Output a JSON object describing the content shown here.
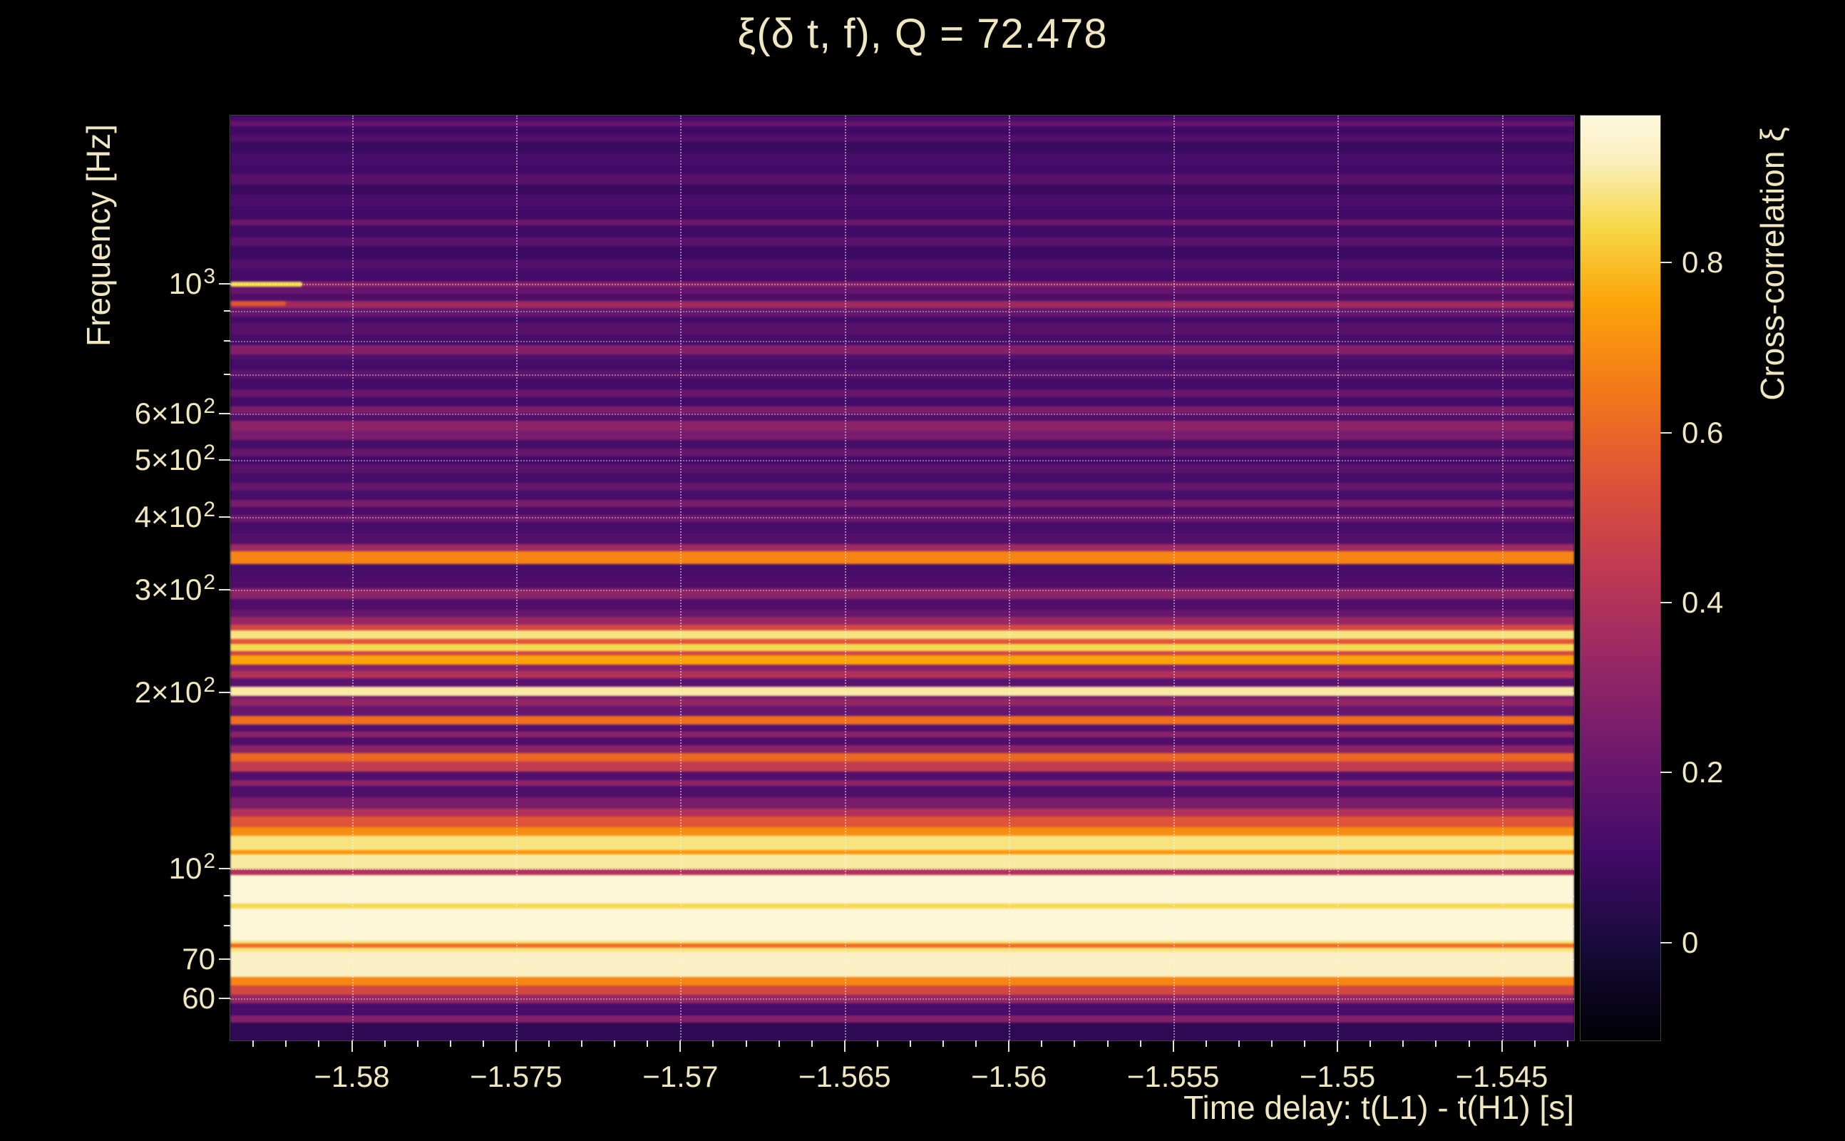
{
  "colors": {
    "background": "#000000",
    "text": "#f0e6c2",
    "tick": "#eae3cd",
    "grid": "rgba(244,244,244,0.45)"
  },
  "chart_data": {
    "type": "heatmap",
    "title": "ξ(δ t, f), Q = 72.478",
    "xlabel": "Time delay: t(L1) - t(H1) [s]",
    "ylabel": "Frequency [Hz]",
    "colorbar_label": "Cross-correlation ξ",
    "x_range": [
      -1.5837,
      -1.5428
    ],
    "x_minor_step": 0.001,
    "x_ticks": [
      {
        "value": -1.58,
        "label": "−1.58"
      },
      {
        "value": -1.575,
        "label": "−1.575"
      },
      {
        "value": -1.57,
        "label": "−1.57"
      },
      {
        "value": -1.565,
        "label": "−1.565"
      },
      {
        "value": -1.56,
        "label": "−1.56"
      },
      {
        "value": -1.555,
        "label": "−1.555"
      },
      {
        "value": -1.55,
        "label": "−1.55"
      },
      {
        "value": -1.545,
        "label": "−1.545"
      }
    ],
    "y_scale": "log",
    "y_range": [
      50.9,
      1940
    ],
    "y_major_ticks": [
      {
        "value": 1000,
        "base": "10",
        "exp": "3"
      },
      {
        "value": 600,
        "base": "6×10",
        "exp": "2"
      },
      {
        "value": 500,
        "base": "5×10",
        "exp": "2"
      },
      {
        "value": 400,
        "base": "4×10",
        "exp": "2"
      },
      {
        "value": 300,
        "base": "3×10",
        "exp": "2"
      },
      {
        "value": 200,
        "base": "2×10",
        "exp": "2"
      },
      {
        "value": 100,
        "base": "10",
        "exp": "2"
      },
      {
        "value": 70,
        "base": "70",
        "exp": ""
      },
      {
        "value": 60,
        "base": "60",
        "exp": ""
      }
    ],
    "y_minor_ticks": [
      80,
      90,
      700,
      800,
      900
    ],
    "y_grid": [
      60,
      70,
      80,
      90,
      100,
      200,
      300,
      400,
      500,
      600,
      700,
      800,
      900,
      1000
    ],
    "grid": true,
    "colorbar": {
      "min": -0.115,
      "max": 0.973,
      "ticks": [
        {
          "value": 0,
          "label": "0"
        },
        {
          "value": 0.2,
          "label": "0.2"
        },
        {
          "value": 0.4,
          "label": "0.4"
        },
        {
          "value": 0.6,
          "label": "0.6"
        },
        {
          "value": 0.8,
          "label": "0.8"
        }
      ]
    },
    "colormap_stops": [
      [
        0.0,
        "#000004"
      ],
      [
        0.1,
        "#160b39"
      ],
      [
        0.2,
        "#420a68"
      ],
      [
        0.3,
        "#6a176e"
      ],
      [
        0.4,
        "#932667"
      ],
      [
        0.5,
        "#bc3754"
      ],
      [
        0.6,
        "#dd513a"
      ],
      [
        0.7,
        "#f3771a"
      ],
      [
        0.8,
        "#fca50a"
      ],
      [
        0.88,
        "#f6d848"
      ],
      [
        0.95,
        "#fbeebc"
      ],
      [
        1.0,
        "#fdf8e0"
      ]
    ],
    "bands": [
      [
        50.9,
        54.7,
        0.06
      ],
      [
        54.7,
        56.3,
        0.28
      ],
      [
        56.3,
        59,
        0.12
      ],
      [
        59,
        61,
        0.32
      ],
      [
        61,
        63.3,
        0.5
      ],
      [
        63.3,
        65.5,
        0.68
      ],
      [
        65.5,
        72.3,
        0.93
      ],
      [
        72.3,
        73.5,
        0.88
      ],
      [
        73.5,
        74.8,
        0.62
      ],
      [
        74.8,
        75.5,
        0.88
      ],
      [
        75.5,
        85.8,
        0.96
      ],
      [
        85.8,
        87.4,
        0.85
      ],
      [
        87.4,
        97.7,
        0.96
      ],
      [
        97.7,
        100,
        0.4
      ],
      [
        100,
        106,
        0.9
      ],
      [
        106,
        108,
        0.72
      ],
      [
        108,
        114,
        0.88
      ],
      [
        114,
        118,
        0.7
      ],
      [
        118,
        123,
        0.55
      ],
      [
        123,
        127,
        0.4
      ],
      [
        127,
        133,
        0.25
      ],
      [
        133,
        139,
        0.14
      ],
      [
        139,
        142,
        0.3
      ],
      [
        142,
        147,
        0.15
      ],
      [
        147,
        153,
        0.45
      ],
      [
        153,
        158,
        0.6
      ],
      [
        158,
        163,
        0.3
      ],
      [
        163,
        168,
        0.14
      ],
      [
        168,
        172,
        0.3
      ],
      [
        172,
        177,
        0.15
      ],
      [
        177,
        183,
        0.62
      ],
      [
        183,
        190,
        0.2
      ],
      [
        190,
        196,
        0.32
      ],
      [
        196,
        198,
        0.2
      ],
      [
        198,
        205,
        0.9
      ],
      [
        205,
        212,
        0.17
      ],
      [
        212,
        218,
        0.4
      ],
      [
        218,
        224,
        0.28
      ],
      [
        224,
        232,
        0.75
      ],
      [
        232,
        236,
        0.5
      ],
      [
        236,
        243,
        0.85
      ],
      [
        243,
        248,
        0.55
      ],
      [
        248,
        256,
        0.88
      ],
      [
        256,
        262,
        0.5
      ],
      [
        262,
        270,
        0.33
      ],
      [
        270,
        278,
        0.2
      ],
      [
        278,
        290,
        0.14
      ],
      [
        290,
        302,
        0.3
      ],
      [
        302,
        315,
        0.14
      ],
      [
        315,
        333,
        0.12
      ],
      [
        333,
        350,
        0.68
      ],
      [
        350,
        360,
        0.35
      ],
      [
        360,
        375,
        0.15
      ],
      [
        375,
        392,
        0.12
      ],
      [
        392,
        404,
        0.22
      ],
      [
        404,
        416,
        0.13
      ],
      [
        416,
        428,
        0.25
      ],
      [
        428,
        444,
        0.12
      ],
      [
        444,
        458,
        0.2
      ],
      [
        458,
        476,
        0.12
      ],
      [
        476,
        492,
        0.17
      ],
      [
        492,
        508,
        0.11
      ],
      [
        508,
        524,
        0.2
      ],
      [
        524,
        542,
        0.12
      ],
      [
        542,
        562,
        0.25
      ],
      [
        562,
        584,
        0.3
      ],
      [
        584,
        602,
        0.15
      ],
      [
        602,
        618,
        0.26
      ],
      [
        618,
        642,
        0.11
      ],
      [
        642,
        662,
        0.2
      ],
      [
        662,
        692,
        0.11
      ],
      [
        692,
        714,
        0.18
      ],
      [
        714,
        744,
        0.11
      ],
      [
        744,
        758,
        0.15
      ],
      [
        758,
        788,
        0.28
      ],
      [
        788,
        822,
        0.12
      ],
      [
        822,
        858,
        0.16
      ],
      [
        858,
        882,
        0.11
      ],
      [
        882,
        912,
        0.2
      ],
      [
        912,
        938,
        0.35
      ],
      [
        938,
        964,
        0.14
      ],
      [
        964,
        992,
        0.2
      ],
      [
        992,
        1012,
        0.3
      ],
      [
        1012,
        1062,
        0.11
      ],
      [
        1062,
        1102,
        0.15
      ],
      [
        1102,
        1162,
        0.09
      ],
      [
        1162,
        1202,
        0.17
      ],
      [
        1202,
        1262,
        0.1
      ],
      [
        1262,
        1292,
        0.22
      ],
      [
        1292,
        1362,
        0.1
      ],
      [
        1362,
        1422,
        0.13
      ],
      [
        1422,
        1482,
        0.08
      ],
      [
        1482,
        1542,
        0.16
      ],
      [
        1542,
        1602,
        0.1
      ],
      [
        1602,
        1682,
        0.12
      ],
      [
        1682,
        1752,
        0.08
      ],
      [
        1752,
        1802,
        0.15
      ],
      [
        1802,
        1862,
        0.1
      ],
      [
        1862,
        1902,
        0.2
      ],
      [
        1902,
        1940,
        0.12
      ]
    ],
    "spots": [
      {
        "f_lo": 988,
        "f_hi": 1008,
        "x0": -1.5837,
        "x1": -1.5815,
        "xi": 0.85
      },
      {
        "f_lo": 918,
        "f_hi": 934,
        "x0": -1.5837,
        "x1": -1.582,
        "xi": 0.55
      }
    ]
  }
}
